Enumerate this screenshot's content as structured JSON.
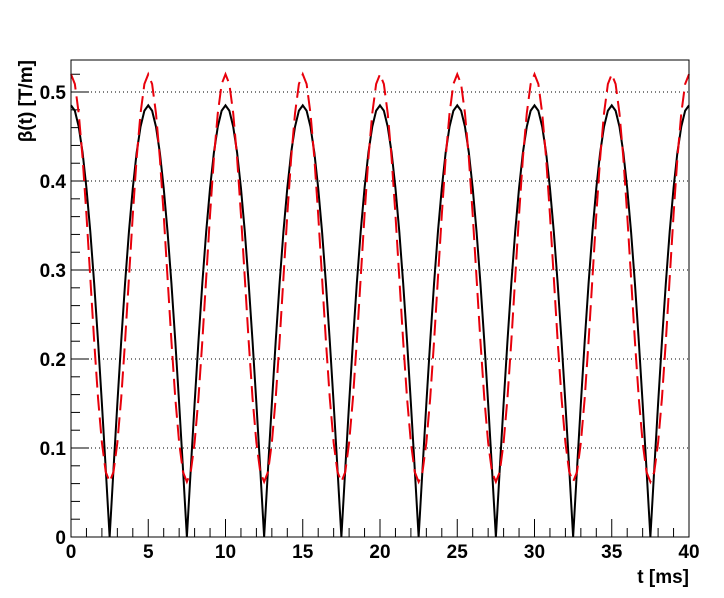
{
  "chart_data": {
    "type": "line",
    "x_label": "t [ms]",
    "y_label": "β(t) [T/m]",
    "xlim": [
      0,
      40
    ],
    "ylim": [
      0,
      0.536
    ],
    "xticks": [
      0,
      5,
      10,
      15,
      20,
      25,
      30,
      35,
      40
    ],
    "yticks": [
      0,
      0.1,
      0.2,
      0.3,
      0.4,
      0.5
    ],
    "xminorticks": [
      1,
      2,
      3,
      4,
      6,
      7,
      8,
      9,
      11,
      12,
      13,
      14,
      16,
      17,
      18,
      19,
      21,
      22,
      23,
      24,
      26,
      27,
      28,
      29,
      31,
      32,
      33,
      34,
      36,
      37,
      38,
      39
    ],
    "yminorticks": [
      0.02,
      0.04,
      0.06,
      0.08,
      0.12,
      0.14,
      0.16,
      0.18,
      0.22,
      0.24,
      0.26,
      0.28,
      0.32,
      0.34,
      0.36,
      0.38,
      0.42,
      0.44,
      0.46,
      0.48,
      0.52
    ],
    "grid": true,
    "x": [
      0,
      0.25,
      0.5,
      0.75,
      1,
      1.25,
      1.5,
      1.75,
      2,
      2.25,
      2.5,
      2.75,
      3,
      3.25,
      3.5,
      3.75,
      4,
      4.25,
      4.5,
      4.75,
      5,
      5.25,
      5.5,
      5.75,
      6,
      6.25,
      6.5,
      6.75,
      7,
      7.25,
      7.5,
      7.75,
      8,
      8.25,
      8.5,
      8.75,
      9,
      9.25,
      9.5,
      9.75,
      10,
      10.25,
      10.5,
      10.75,
      11,
      11.25,
      11.5,
      11.75,
      12,
      12.25,
      12.5,
      12.75,
      13,
      13.25,
      13.5,
      13.75,
      14,
      14.25,
      14.5,
      14.75,
      15,
      15.25,
      15.5,
      15.75,
      16,
      16.25,
      16.5,
      16.75,
      17,
      17.25,
      17.5,
      17.75,
      18,
      18.25,
      18.5,
      18.75,
      19,
      19.25,
      19.5,
      19.75,
      20,
      20.25,
      20.5,
      20.75,
      21,
      21.25,
      21.5,
      21.75,
      22,
      22.25,
      22.5,
      22.75,
      23,
      23.25,
      23.5,
      23.75,
      24,
      24.25,
      24.5,
      24.75,
      25,
      25.25,
      25.5,
      25.75,
      26,
      26.25,
      26.5,
      26.75,
      27,
      27.25,
      27.5,
      27.75,
      28,
      28.25,
      28.5,
      28.75,
      29,
      29.25,
      29.5,
      29.75,
      30,
      30.25,
      30.5,
      30.75,
      31,
      31.25,
      31.5,
      31.75,
      32,
      32.25,
      32.5,
      32.75,
      33,
      33.25,
      33.5,
      33.75,
      34,
      34.25,
      34.5,
      34.75,
      35,
      35.25,
      35.5,
      35.75,
      36,
      36.25,
      36.5,
      36.75,
      37,
      37.25,
      37.5,
      37.75,
      38,
      38.25,
      38.5,
      38.75,
      39,
      39.25,
      39.5,
      39.75,
      40
    ],
    "series": [
      {
        "color": "#000000",
        "dash": false,
        "values": [
          0.485,
          0.479,
          0.461,
          0.432,
          0.392,
          0.343,
          0.285,
          0.22,
          0.15,
          0.076,
          0,
          0.076,
          0.15,
          0.22,
          0.285,
          0.343,
          0.392,
          0.432,
          0.461,
          0.479,
          0.485,
          0.479,
          0.461,
          0.432,
          0.392,
          0.343,
          0.285,
          0.22,
          0.15,
          0.076,
          0,
          0.076,
          0.15,
          0.22,
          0.285,
          0.343,
          0.392,
          0.432,
          0.461,
          0.479,
          0.485,
          0.479,
          0.461,
          0.432,
          0.392,
          0.343,
          0.285,
          0.22,
          0.15,
          0.076,
          0,
          0.076,
          0.15,
          0.22,
          0.285,
          0.343,
          0.392,
          0.432,
          0.461,
          0.479,
          0.485,
          0.479,
          0.461,
          0.432,
          0.392,
          0.343,
          0.285,
          0.22,
          0.15,
          0.076,
          0,
          0.076,
          0.15,
          0.22,
          0.285,
          0.343,
          0.392,
          0.432,
          0.461,
          0.479,
          0.485,
          0.479,
          0.461,
          0.432,
          0.392,
          0.343,
          0.285,
          0.22,
          0.15,
          0.076,
          0,
          0.076,
          0.15,
          0.22,
          0.285,
          0.343,
          0.392,
          0.432,
          0.461,
          0.479,
          0.485,
          0.479,
          0.461,
          0.432,
          0.392,
          0.343,
          0.285,
          0.22,
          0.15,
          0.076,
          0,
          0.076,
          0.15,
          0.22,
          0.285,
          0.343,
          0.392,
          0.432,
          0.461,
          0.479,
          0.485,
          0.479,
          0.461,
          0.432,
          0.392,
          0.343,
          0.285,
          0.22,
          0.15,
          0.076,
          0,
          0.076,
          0.15,
          0.22,
          0.285,
          0.343,
          0.392,
          0.432,
          0.461,
          0.479,
          0.485,
          0.479,
          0.461,
          0.432,
          0.392,
          0.343,
          0.285,
          0.22,
          0.15,
          0.076,
          0,
          0.076,
          0.15,
          0.22,
          0.285,
          0.343,
          0.392,
          0.432,
          0.461,
          0.479,
          0.485
        ]
      },
      {
        "color": "#e8000b",
        "dash": true,
        "values": [
          0.52,
          0.509,
          0.476,
          0.426,
          0.362,
          0.291,
          0.22,
          0.156,
          0.106,
          0.073,
          0.062,
          0.073,
          0.106,
          0.156,
          0.22,
          0.291,
          0.362,
          0.426,
          0.476,
          0.509,
          0.52,
          0.509,
          0.476,
          0.426,
          0.362,
          0.291,
          0.22,
          0.156,
          0.106,
          0.073,
          0.062,
          0.073,
          0.106,
          0.156,
          0.22,
          0.291,
          0.362,
          0.426,
          0.476,
          0.509,
          0.52,
          0.509,
          0.476,
          0.426,
          0.362,
          0.291,
          0.22,
          0.156,
          0.106,
          0.073,
          0.062,
          0.073,
          0.106,
          0.156,
          0.22,
          0.291,
          0.362,
          0.426,
          0.476,
          0.509,
          0.52,
          0.509,
          0.476,
          0.426,
          0.362,
          0.291,
          0.22,
          0.156,
          0.106,
          0.073,
          0.062,
          0.073,
          0.106,
          0.156,
          0.22,
          0.291,
          0.362,
          0.426,
          0.476,
          0.509,
          0.52,
          0.509,
          0.476,
          0.426,
          0.362,
          0.291,
          0.22,
          0.156,
          0.106,
          0.073,
          0.062,
          0.073,
          0.106,
          0.156,
          0.22,
          0.291,
          0.362,
          0.426,
          0.476,
          0.509,
          0.52,
          0.509,
          0.476,
          0.426,
          0.362,
          0.291,
          0.22,
          0.156,
          0.106,
          0.073,
          0.062,
          0.073,
          0.106,
          0.156,
          0.22,
          0.291,
          0.362,
          0.426,
          0.476,
          0.509,
          0.52,
          0.509,
          0.476,
          0.426,
          0.362,
          0.291,
          0.22,
          0.156,
          0.106,
          0.073,
          0.062,
          0.073,
          0.106,
          0.156,
          0.22,
          0.291,
          0.362,
          0.426,
          0.476,
          0.509,
          0.52,
          0.509,
          0.476,
          0.426,
          0.362,
          0.291,
          0.22,
          0.156,
          0.106,
          0.073,
          0.062,
          0.073,
          0.106,
          0.156,
          0.22,
          0.291,
          0.362,
          0.426,
          0.476,
          0.509,
          0.52
        ]
      }
    ]
  }
}
